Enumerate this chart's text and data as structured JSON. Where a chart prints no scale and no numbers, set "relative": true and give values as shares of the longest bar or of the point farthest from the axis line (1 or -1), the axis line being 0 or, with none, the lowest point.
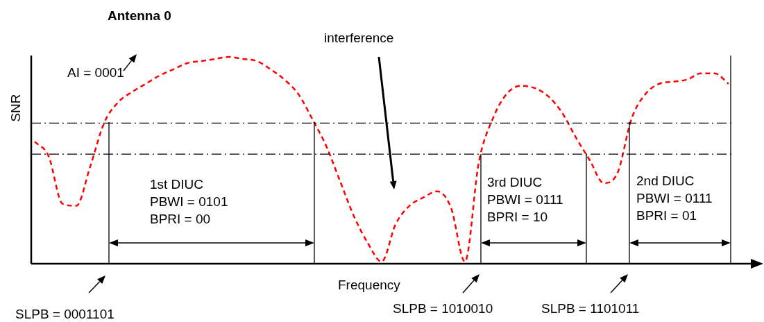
{
  "chart_data": {
    "type": "line",
    "relative": true,
    "xlabel": "Frequency",
    "ylabel": "SNR",
    "categories": [
      null,
      null,
      null,
      null,
      null,
      null,
      null,
      null,
      null,
      null,
      null,
      null,
      null,
      null,
      null,
      null,
      null,
      null,
      null,
      null,
      null,
      null,
      null,
      null,
      null,
      null,
      null,
      null,
      null,
      null,
      null,
      null,
      null,
      null,
      null,
      null,
      null,
      null,
      null,
      null,
      null,
      null,
      null,
      null,
      null,
      null,
      null,
      null,
      null,
      null,
      null
    ],
    "series": [
      {
        "color": "#ff0000",
        "values": [
          0.59,
          0.52,
          0.29,
          0.28,
          0.47,
          0.68,
          0.78,
          0.83,
          0.87,
          0.91,
          0.94,
          0.97,
          0.98,
          0.99,
          1.0,
          0.99,
          0.98,
          0.94,
          0.89,
          0.82,
          0.7,
          0.57,
          0.4,
          0.23,
          0.1,
          0.01,
          0.19,
          0.28,
          0.32,
          0.35,
          0.27,
          0.01,
          0.49,
          0.7,
          0.82,
          0.86,
          0.85,
          0.81,
          0.73,
          0.61,
          0.5,
          0.39,
          0.44,
          0.7,
          0.82,
          0.87,
          0.88,
          0.89,
          0.92,
          0.92,
          0.87
        ]
      }
    ],
    "line_style": "dashed",
    "marker": "none",
    "ref_lines": [
      {
        "axis": "y",
        "value": 0.68,
        "color": "#000000",
        "line_style": "dashed"
      },
      {
        "axis": "y",
        "value": 0.53,
        "color": "#000000",
        "line_style": "dashed"
      }
    ],
    "annotations": [
      "Antenna 0",
      "AI = 0001",
      "interference",
      "1st DIUC\nPBWI = 0101\nBPRI = 00",
      "3rd DIUC\nPBWI = 0111\nBPRI = 10",
      "2nd DIUC\nPBWI = 0111\nBPRI = 01",
      "SLPB = 0001101",
      "SLPB = 1010010",
      "SLPB = 1101011"
    ]
  }
}
